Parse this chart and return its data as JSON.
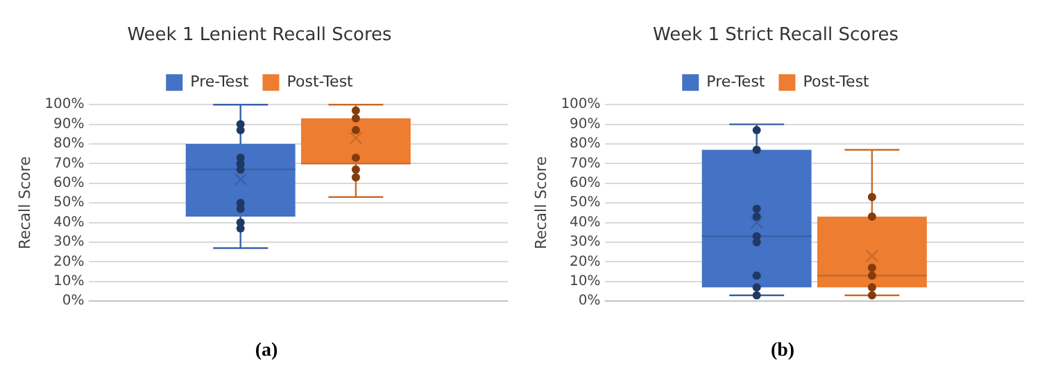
{
  "chart_data": [
    {
      "type": "box",
      "title": "Week 1 Lenient Recall Scores",
      "ylabel": "Recall Score",
      "categories": [
        null
      ],
      "ylim": [
        0,
        100
      ],
      "yticks": [
        {
          "value": 0,
          "label": "0%"
        },
        {
          "value": 10,
          "label": "10%"
        },
        {
          "value": 20,
          "label": "20%"
        },
        {
          "value": 30,
          "label": "30%"
        },
        {
          "value": 40,
          "label": "40%"
        },
        {
          "value": 50,
          "label": "50%"
        },
        {
          "value": 60,
          "label": "60%"
        },
        {
          "value": 70,
          "label": "70%"
        },
        {
          "value": 80,
          "label": "80%"
        },
        {
          "value": 90,
          "label": "90%"
        },
        {
          "value": 100,
          "label": "100%"
        }
      ],
      "grid": "y",
      "legend": "top",
      "annotations": [
        "(a)"
      ],
      "series": [
        {
          "type": "box",
          "name": "Pre-Test",
          "color": "#4472c4",
          "boxes": [
            {
              "low": 27,
              "q1": 43,
              "median": 67,
              "q3": 80,
              "high": 100,
              "mean": 62
            }
          ]
        },
        {
          "type": "box",
          "name": "Post-Test",
          "color": "#ed7d31",
          "boxes": [
            {
              "low": 53,
              "q1": 70,
              "median": 70,
              "q3": 93,
              "high": 100,
              "mean": 83
            }
          ]
        },
        {
          "type": "scatter",
          "color": "#203864",
          "x": [
            null,
            null,
            null,
            null,
            null,
            null,
            null,
            null,
            null
          ],
          "values": [
            90,
            87,
            73,
            70,
            67,
            50,
            47,
            40,
            37
          ]
        },
        {
          "type": "scatter",
          "color": "#843c0c",
          "x": [
            null,
            null,
            null,
            null,
            null,
            null
          ],
          "values": [
            97,
            93,
            87,
            73,
            67,
            63
          ]
        }
      ]
    },
    {
      "type": "box",
      "title": "Week 1 Strict Recall Scores",
      "ylabel": "Recall Score",
      "categories": [
        null
      ],
      "ylim": [
        0,
        100
      ],
      "yticks": [
        {
          "value": 0,
          "label": "0%"
        },
        {
          "value": 10,
          "label": "10%"
        },
        {
          "value": 20,
          "label": "20%"
        },
        {
          "value": 30,
          "label": "30%"
        },
        {
          "value": 40,
          "label": "40%"
        },
        {
          "value": 50,
          "label": "50%"
        },
        {
          "value": 60,
          "label": "60%"
        },
        {
          "value": 70,
          "label": "70%"
        },
        {
          "value": 80,
          "label": "80%"
        },
        {
          "value": 90,
          "label": "90%"
        },
        {
          "value": 100,
          "label": "100%"
        }
      ],
      "grid": "y",
      "legend": "top",
      "annotations": [
        "(b)"
      ],
      "series": [
        {
          "type": "box",
          "name": "Pre-Test",
          "color": "#4472c4",
          "boxes": [
            {
              "low": 3,
              "q1": 7,
              "median": 33,
              "q3": 77,
              "high": 90,
              "mean": 40
            }
          ]
        },
        {
          "type": "box",
          "name": "Post-Test",
          "color": "#ed7d31",
          "boxes": [
            {
              "low": 3,
              "q1": 7,
              "median": 13,
              "q3": 43,
              "high": 77,
              "mean": 23
            }
          ]
        },
        {
          "type": "scatter",
          "color": "#203864",
          "x": [
            null,
            null,
            null,
            null,
            null,
            null,
            null,
            null,
            null
          ],
          "values": [
            87,
            77,
            47,
            43,
            33,
            30,
            13,
            7,
            3
          ]
        },
        {
          "type": "scatter",
          "color": "#843c0c",
          "x": [
            null,
            null,
            null,
            null,
            null,
            null
          ],
          "values": [
            53,
            43,
            17,
            13,
            7,
            3
          ]
        }
      ]
    }
  ]
}
